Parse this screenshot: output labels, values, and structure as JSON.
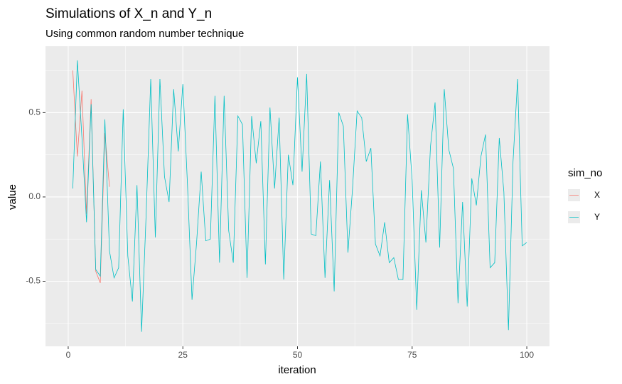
{
  "chart_data": {
    "type": "line",
    "title": "Simulations of X_n and Y_n",
    "subtitle": "Using common random number technique",
    "x_label": "iteration",
    "y_label": "value",
    "legend_title": "sim_no",
    "legend_position": "right",
    "grid": true,
    "x": [
      1,
      2,
      3,
      4,
      5,
      6,
      7,
      8,
      9,
      10,
      11,
      12,
      13,
      14,
      15,
      16,
      17,
      18,
      19,
      20,
      21,
      22,
      23,
      24,
      25,
      26,
      27,
      28,
      29,
      30,
      31,
      32,
      33,
      34,
      35,
      36,
      37,
      38,
      39,
      40,
      41,
      42,
      43,
      44,
      45,
      46,
      47,
      48,
      49,
      50,
      51,
      52,
      53,
      54,
      55,
      56,
      57,
      58,
      59,
      60,
      61,
      62,
      63,
      64,
      65,
      66,
      67,
      68,
      69,
      70,
      71,
      72,
      73,
      74,
      75,
      76,
      77,
      78,
      79,
      80,
      81,
      82,
      83,
      84,
      85,
      86,
      87,
      88,
      89,
      90,
      91,
      92,
      93,
      94,
      95,
      96,
      97,
      98,
      99,
      100
    ],
    "series": [
      {
        "name": "X",
        "color": "#F8766D",
        "values": [
          0.75,
          0.24,
          0.63,
          -0.1,
          0.58,
          -0.44,
          -0.51,
          0.38,
          0.06,
          null,
          null,
          null,
          null,
          null,
          null,
          null,
          null,
          null,
          null,
          null,
          null,
          null,
          null,
          null,
          null,
          null,
          null,
          null,
          null,
          null,
          null,
          null,
          null,
          null,
          null,
          null,
          null,
          null,
          null,
          null,
          null,
          null,
          null,
          null,
          null,
          null,
          null,
          null,
          null,
          null,
          null,
          null,
          null,
          null,
          null,
          null,
          null,
          null,
          null,
          null,
          null,
          null,
          null,
          null,
          null,
          null,
          null,
          null,
          null,
          null,
          null,
          null,
          null,
          null,
          null,
          null,
          null,
          null,
          null,
          null,
          null,
          null,
          null,
          null,
          null,
          null,
          null,
          null,
          null,
          null,
          null,
          null,
          null,
          null,
          null,
          null,
          null,
          null,
          null,
          null
        ]
      },
      {
        "name": "Y",
        "color": "#00BFC4",
        "values": [
          0.05,
          0.81,
          0.35,
          -0.15,
          0.55,
          -0.43,
          -0.47,
          0.46,
          -0.32,
          -0.48,
          -0.42,
          0.52,
          -0.35,
          -0.62,
          0.07,
          -0.8,
          -0.1,
          0.7,
          -0.24,
          0.7,
          0.12,
          -0.03,
          0.64,
          0.27,
          0.67,
          0.08,
          -0.61,
          -0.27,
          0.15,
          -0.26,
          -0.25,
          0.6,
          -0.39,
          0.6,
          -0.2,
          -0.39,
          0.48,
          0.43,
          -0.48,
          0.48,
          0.2,
          0.45,
          -0.4,
          0.53,
          0.05,
          0.47,
          -0.49,
          0.25,
          0.07,
          0.71,
          0.15,
          0.73,
          -0.22,
          -0.23,
          0.21,
          -0.48,
          0.1,
          -0.56,
          0.5,
          0.42,
          -0.33,
          0.05,
          0.51,
          0.47,
          0.21,
          0.29,
          -0.28,
          -0.35,
          -0.15,
          -0.39,
          -0.36,
          -0.49,
          -0.49,
          0.49,
          0.1,
          -0.67,
          0.04,
          -0.27,
          0.3,
          0.56,
          -0.3,
          0.64,
          0.28,
          0.17,
          -0.63,
          -0.03,
          -0.65,
          0.11,
          -0.05,
          0.24,
          0.37,
          -0.42,
          -0.39,
          0.35,
          0.03,
          -0.79,
          0.21,
          0.7,
          -0.29,
          -0.27
        ]
      }
    ],
    "xlim": [
      -4.95,
      104.95
    ],
    "xticks": [
      0,
      25,
      50,
      75,
      100
    ],
    "ylim": [
      -0.886,
      0.894
    ],
    "yticks": [
      {
        "value": -0.5,
        "label": "-0.5"
      },
      {
        "value": 0,
        "label": "0.0"
      },
      {
        "value": 0.5,
        "label": "0.5"
      }
    ]
  }
}
